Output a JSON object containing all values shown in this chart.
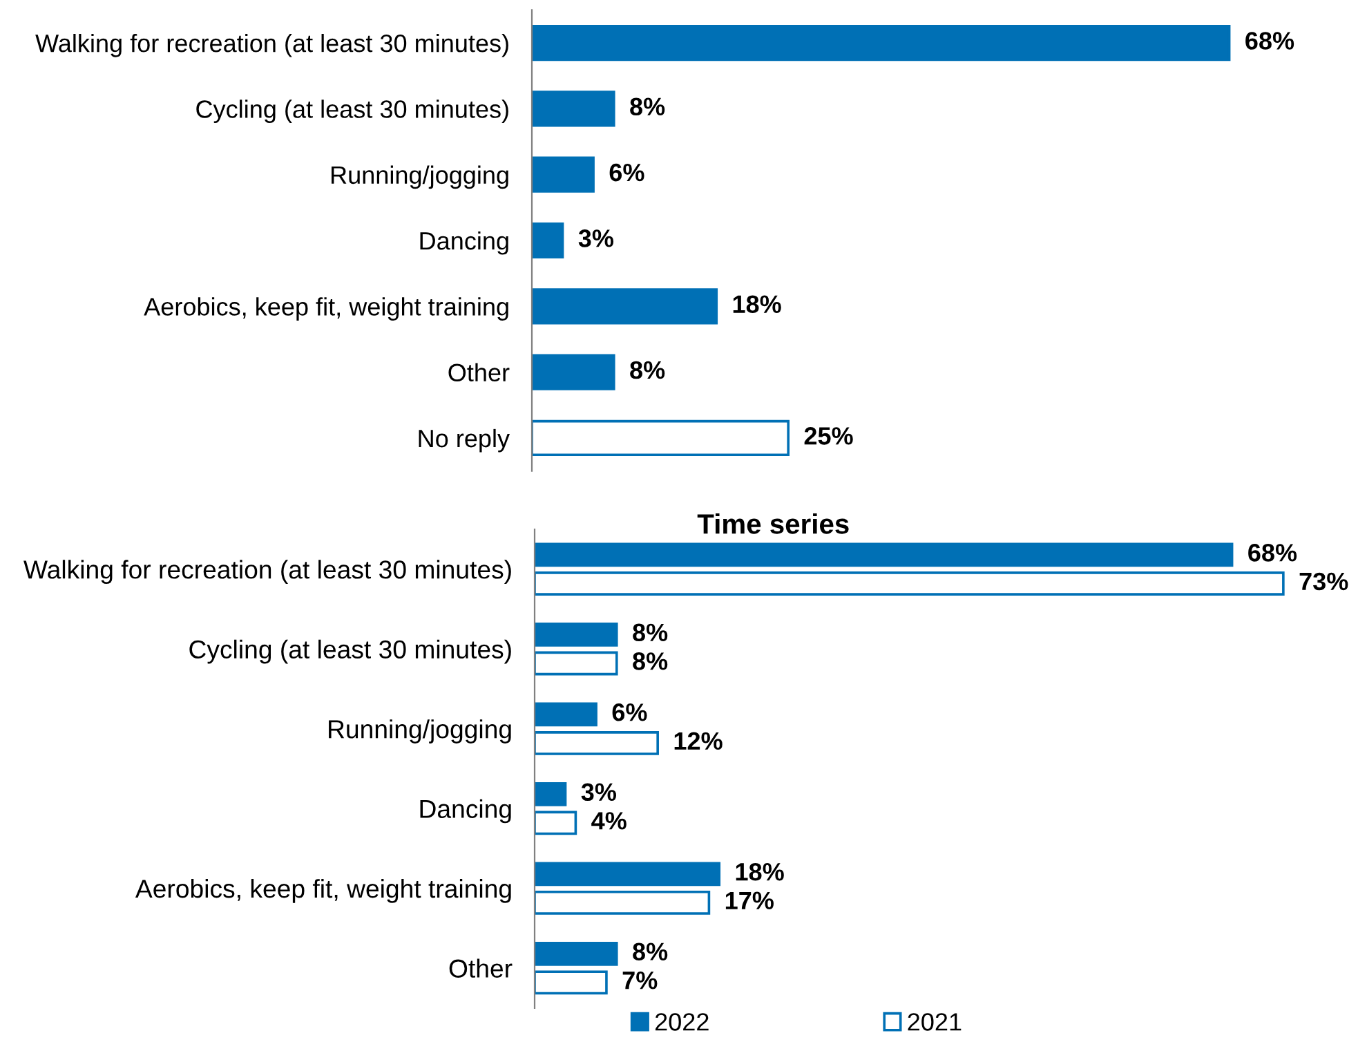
{
  "chart_data": [
    {
      "type": "bar",
      "orientation": "horizontal",
      "categories": [
        "Walking for recreation (at least 30 minutes)",
        "Cycling (at least 30 minutes)",
        "Running/jogging",
        "Dancing",
        "Aerobics, keep fit, weight training",
        "Other",
        "No reply"
      ],
      "values": [
        68,
        8,
        6,
        3,
        18,
        8,
        25
      ],
      "colors": [
        "#0070b5",
        "#0070b5",
        "#0070b5",
        "#0070b5",
        "#0070b5",
        "#0070b5",
        "#ffffff"
      ],
      "value_labels": [
        "68%",
        "8%",
        "6%",
        "3%",
        "18%",
        "8%",
        "25%"
      ]
    },
    {
      "type": "bar",
      "orientation": "horizontal",
      "title": "Time series",
      "categories": [
        "Walking for recreation (at least 30 minutes)",
        "Cycling (at least 30 minutes)",
        "Running/jogging",
        "Dancing",
        "Aerobics, keep fit, weight training",
        "Other"
      ],
      "series": [
        {
          "name": "2022",
          "color": "#0070b5",
          "values": [
            68,
            8,
            6,
            3,
            18,
            8
          ],
          "value_labels": [
            "68%",
            "8%",
            "6%",
            "3%",
            "18%",
            "8%"
          ]
        },
        {
          "name": "2021",
          "color": "#ffffff",
          "values": [
            73,
            8,
            12,
            4,
            17,
            7
          ],
          "value_labels": [
            "73%",
            "8%",
            "12%",
            "4%",
            "17%",
            "7%"
          ]
        }
      ],
      "legend": "bottom"
    }
  ]
}
